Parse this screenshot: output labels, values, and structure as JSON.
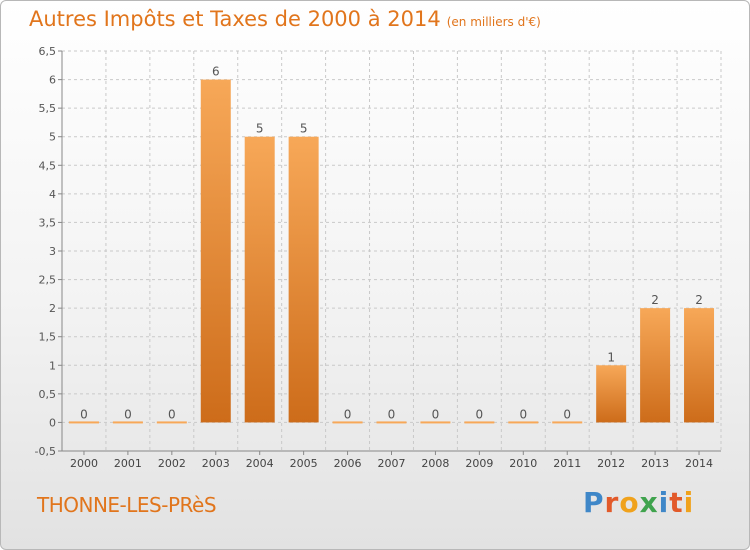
{
  "title": "Autres Impôts et Taxes de 2000 à 2014",
  "subtitle": "(en milliers d'€)",
  "place_label": "THONNE-LES-PRèS",
  "logo": {
    "text": "Proxiti",
    "letters": [
      {
        "char": "P",
        "color": "#3f87c8"
      },
      {
        "char": "r",
        "color": "#e25a2a"
      },
      {
        "char": "o",
        "color": "#f0a21c"
      },
      {
        "char": "x",
        "color": "#3fa34d"
      },
      {
        "char": "i",
        "color": "#3f87c8"
      },
      {
        "char": "t",
        "color": "#e25a2a"
      },
      {
        "char": "i",
        "color": "#f0a21c"
      }
    ]
  },
  "colors": {
    "accent": "#e1751c",
    "bar_light": "#f7a858",
    "bar_dark": "#cd6c1a",
    "grid": "#c9c9c9"
  },
  "chart_data": {
    "type": "bar",
    "categories": [
      "2000",
      "2001",
      "2002",
      "2003",
      "2004",
      "2005",
      "2006",
      "2007",
      "2008",
      "2009",
      "2010",
      "2011",
      "2012",
      "2013",
      "2014"
    ],
    "values": [
      0,
      0,
      0,
      6,
      5,
      5,
      0,
      0,
      0,
      0,
      0,
      0,
      1,
      2,
      2
    ],
    "data_labels": [
      "0",
      "0",
      "0",
      "6",
      "5",
      "5",
      "0",
      "0",
      "0",
      "0",
      "0",
      "0",
      "1",
      "2",
      "2"
    ],
    "ylim": [
      -0.5,
      6.5
    ],
    "y_ticks": [
      "-0,5",
      "0",
      "0,5",
      "1",
      "1,5",
      "2",
      "2,5",
      "3",
      "3,5",
      "4",
      "4,5",
      "5",
      "5,5",
      "6",
      "6,5"
    ],
    "grid": true
  }
}
